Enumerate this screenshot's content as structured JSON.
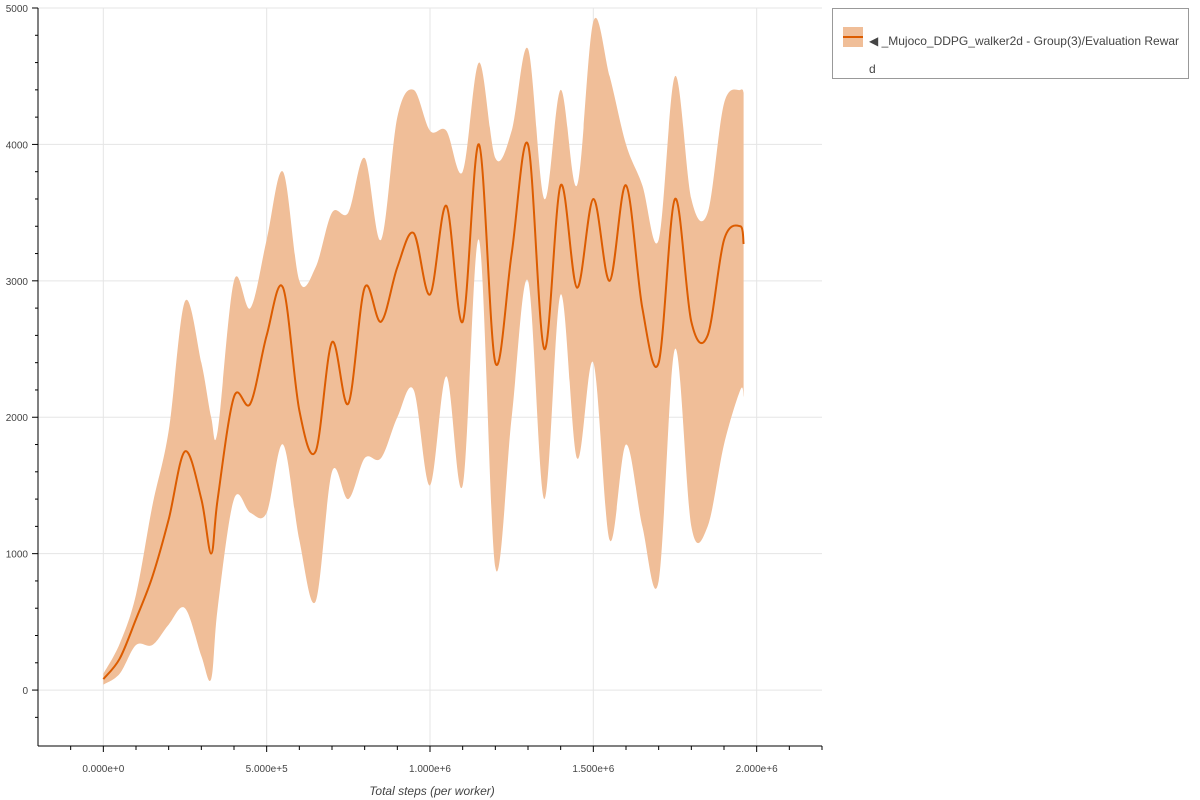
{
  "chart_data": {
    "type": "line",
    "xlabel": "Total steps (per worker)",
    "ylabel": "",
    "xlim": [
      -200000,
      2200000
    ],
    "ylim": [
      -410,
      5000
    ],
    "grid": true,
    "legend_placement": "outside-top-right",
    "x_ticks": [
      0,
      500000,
      1000000,
      1500000,
      2000000
    ],
    "x_tick_labels": [
      "0.000e+0",
      "5.000e+5",
      "1.000e+6",
      "1.500e+6",
      "2.000e+6"
    ],
    "y_ticks": [
      0,
      1000,
      2000,
      3000,
      4000,
      5000
    ],
    "y_tick_labels": [
      "0",
      "1000",
      "2000",
      "3000",
      "4000",
      "5000"
    ],
    "colors": {
      "line": "#dc5c00",
      "band": "#f0be98"
    },
    "series": [
      {
        "name": "◀ _Mujoco_DDPG_walker2d - Group(3)/Evaluation Reward",
        "x": [
          0,
          50000,
          100000,
          150000,
          200000,
          250000,
          300000,
          330000,
          350000,
          400000,
          450000,
          500000,
          550000,
          600000,
          650000,
          700000,
          750000,
          800000,
          850000,
          900000,
          950000,
          1000000,
          1050000,
          1100000,
          1150000,
          1200000,
          1250000,
          1300000,
          1350000,
          1400000,
          1450000,
          1500000,
          1550000,
          1600000,
          1650000,
          1700000,
          1750000,
          1800000,
          1850000,
          1900000,
          1950000,
          1960000
        ],
        "mean": [
          80,
          230,
          520,
          830,
          1250,
          1750,
          1400,
          1000,
          1400,
          2150,
          2100,
          2600,
          2950,
          2050,
          1750,
          2550,
          2100,
          2950,
          2700,
          3100,
          3350,
          2900,
          3550,
          2700,
          4000,
          2400,
          3200,
          4000,
          2500,
          3700,
          2950,
          3600,
          3000,
          3700,
          2800,
          2400,
          3600,
          2700,
          2600,
          3300,
          3400,
          3270
        ],
        "upper": [
          120,
          340,
          700,
          1350,
          1900,
          2850,
          2400,
          2000,
          1900,
          3000,
          2800,
          3300,
          3800,
          3000,
          3100,
          3500,
          3500,
          3900,
          3300,
          4200,
          4400,
          4100,
          4100,
          3800,
          4600,
          3900,
          4100,
          4700,
          3600,
          4400,
          3700,
          4900,
          4500,
          4000,
          3700,
          3300,
          4500,
          3600,
          3500,
          4300,
          4400,
          4380
        ],
        "lower": [
          40,
          120,
          330,
          330,
          480,
          600,
          250,
          80,
          600,
          1400,
          1300,
          1300,
          1800,
          1100,
          650,
          1600,
          1400,
          1700,
          1700,
          2000,
          2200,
          1500,
          2300,
          1500,
          3300,
          900,
          2000,
          3000,
          1400,
          2900,
          1700,
          2400,
          1100,
          1800,
          1200,
          800,
          2500,
          1200,
          1200,
          1800,
          2200,
          2150
        ]
      }
    ]
  },
  "legend": {
    "label": "◀ _Mujoco_DDPG_walker2d - Group(3)/Evaluation Reward"
  }
}
